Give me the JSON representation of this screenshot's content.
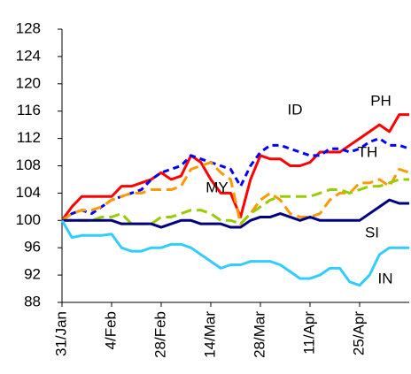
{
  "chart_data": {
    "type": "line",
    "x": [
      0,
      2,
      4,
      6,
      8,
      10,
      12,
      14,
      16,
      18,
      20,
      22,
      24,
      26,
      28,
      30,
      32,
      34,
      36,
      38,
      40,
      42,
      44,
      46,
      48,
      50,
      52,
      54,
      56,
      58,
      60,
      62,
      64,
      66,
      68,
      70
    ],
    "xlim": [
      0,
      70
    ],
    "xticks": [
      {
        "value": 0,
        "label": "31/Jan"
      },
      {
        "value": 10,
        "label": "4/Feb"
      },
      {
        "value": 20,
        "label": "28/Feb"
      },
      {
        "value": 30,
        "label": "14/Mar"
      },
      {
        "value": 40,
        "label": "28/Mar"
      },
      {
        "value": 50,
        "label": "11/Apr"
      },
      {
        "value": 60,
        "label": "25/Apr"
      }
    ],
    "ylim": [
      88,
      128
    ],
    "yticks": [
      88,
      92,
      96,
      100,
      104,
      108,
      112,
      116,
      120,
      124,
      128
    ],
    "series": [
      {
        "name": "PH",
        "color": "#ff0000",
        "dash": "none",
        "values": [
          100,
          102,
          103.5,
          103.5,
          103.5,
          103.5,
          105,
          105,
          105.5,
          106,
          107,
          106,
          106.5,
          109.5,
          108.5,
          106,
          104,
          104,
          100.5,
          106,
          109.5,
          109,
          109,
          108,
          108,
          108.5,
          110,
          110,
          110,
          111,
          112,
          113,
          114,
          113,
          115.5,
          115.5
        ]
      },
      {
        "name": "ID",
        "color": "#0000ff",
        "dash": "7,5",
        "values": [
          100,
          101,
          101.5,
          101,
          102,
          103,
          103.5,
          104,
          104.5,
          106,
          107,
          107.5,
          108,
          109.5,
          109,
          108.5,
          108,
          107.5,
          105,
          108,
          110,
          111,
          111,
          110.5,
          110,
          109.5,
          109.5,
          110.5,
          110.5,
          110,
          110.5,
          111.5,
          112,
          111,
          111,
          110.5
        ]
      },
      {
        "name": "TH",
        "color": "#ff9900",
        "dash": "12,6",
        "values": [
          100,
          101,
          101.5,
          101.5,
          102,
          103,
          103.5,
          104,
          104,
          104.5,
          104.5,
          104.5,
          105,
          107.5,
          108,
          108.5,
          107,
          106,
          99.5,
          101,
          103,
          104,
          103,
          101,
          100.5,
          100.5,
          101,
          103,
          104,
          104,
          105.5,
          105.5,
          106,
          105,
          107.5,
          107
        ]
      },
      {
        "name": "MY",
        "color": "#99cc00",
        "dash": "12,6",
        "values": [
          100,
          100,
          100,
          100,
          100.5,
          100.5,
          101,
          99.5,
          99.5,
          99.5,
          100.5,
          100.5,
          101,
          101.5,
          101.5,
          101,
          100,
          100,
          99.5,
          101,
          102,
          103,
          103.5,
          103.5,
          103.5,
          103.5,
          104,
          104.5,
          104.5,
          104,
          104.5,
          105,
          105,
          105.5,
          106,
          106
        ]
      },
      {
        "name": "SI",
        "color": "#000080",
        "dash": "none",
        "values": [
          100,
          100,
          100,
          100,
          100,
          100,
          99.5,
          99.5,
          99.5,
          99.5,
          99,
          99.5,
          100,
          100,
          99.5,
          99.5,
          99.5,
          99,
          99,
          100,
          100.5,
          100.5,
          101,
          100.5,
          100,
          100.5,
          100,
          100,
          100,
          100,
          100,
          101,
          102,
          103,
          102.5,
          102.5
        ]
      },
      {
        "name": "IN",
        "color": "#33ccff",
        "dash": "none",
        "values": [
          100,
          97.5,
          97.8,
          97.8,
          97.8,
          98,
          96,
          95.5,
          95.5,
          96,
          96,
          96.5,
          96.5,
          96,
          95,
          94,
          93,
          93.5,
          93.5,
          94,
          94,
          94,
          93.5,
          92.5,
          91.5,
          91.5,
          92,
          93,
          93,
          91,
          90.5,
          92,
          95,
          96,
          96,
          96
        ]
      }
    ]
  }
}
